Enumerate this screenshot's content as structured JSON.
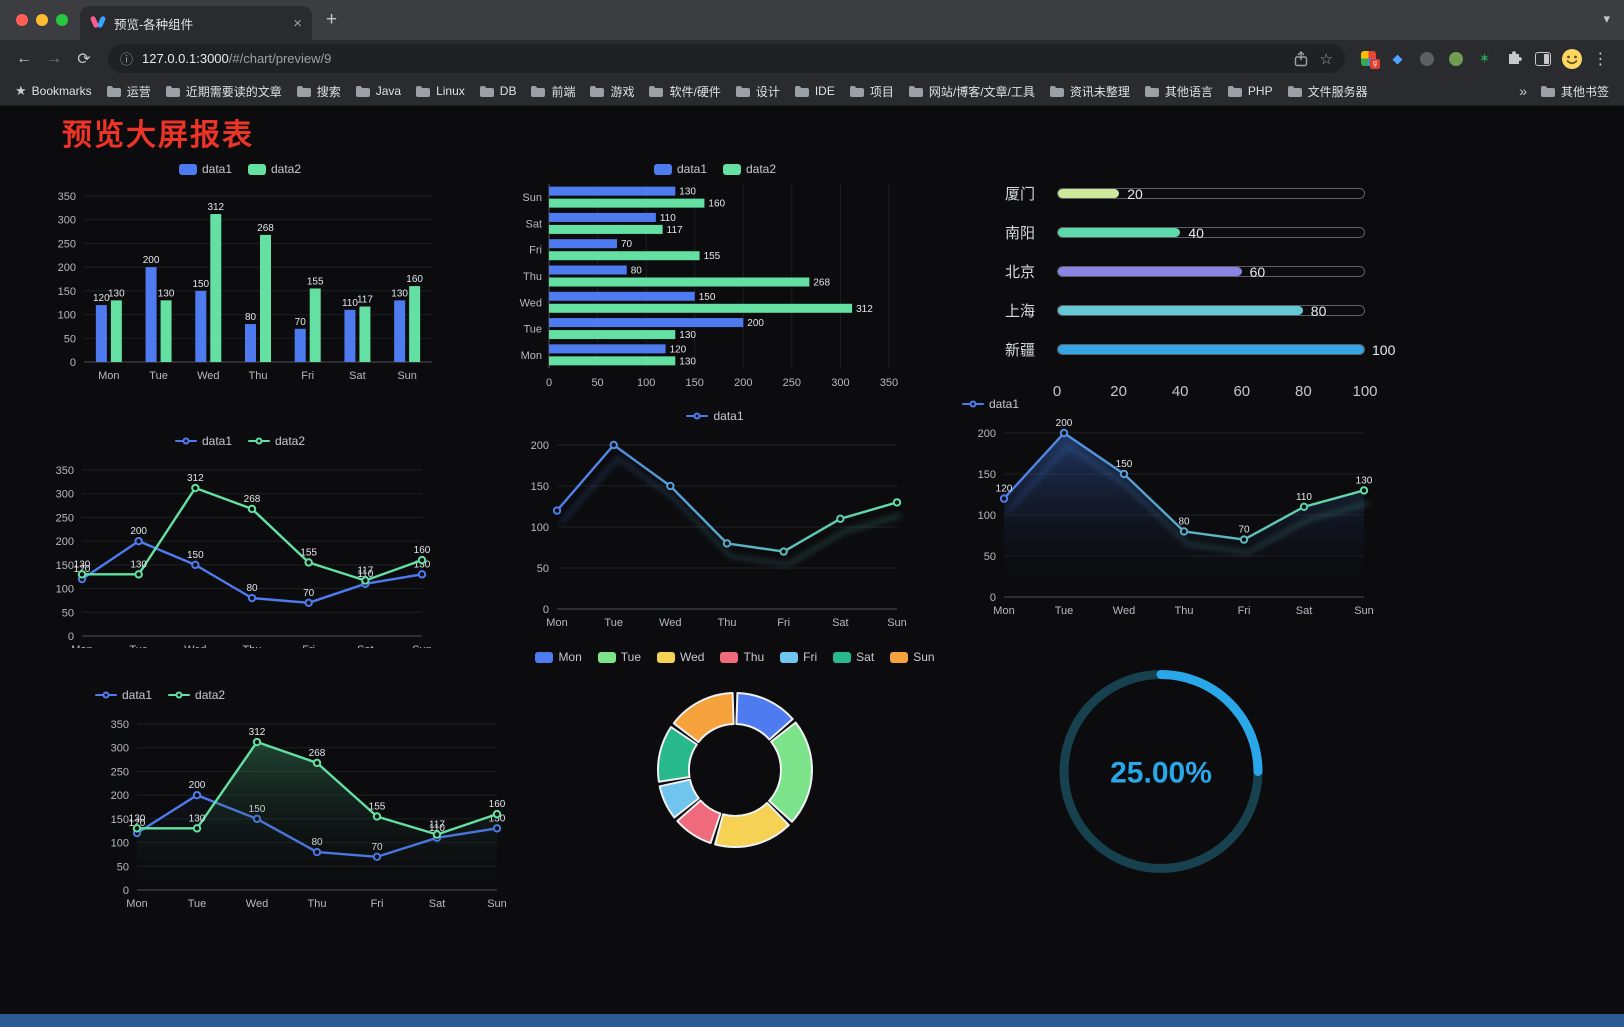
{
  "browser": {
    "tab": {
      "title": "预览-各种组件",
      "close_icon": "×",
      "new_tab_icon": "+",
      "tabsearch_icon": "▾"
    },
    "nav": {
      "back_icon": "←",
      "forward_icon": "→",
      "reload_icon": "⟳"
    },
    "omnibox": {
      "info_icon": "ⓘ",
      "url_host": "127.0.0.1:3000",
      "url_path": "/#/chart/preview/9",
      "bookmark_icon": "☆"
    },
    "toolbar_right": {
      "extension_badge": "g",
      "gem_icon": "◆",
      "star_ext_icon": "✶",
      "menu_icon": "⋮"
    },
    "bookmarks_bar": {
      "star_icon": "★",
      "label": "Bookmarks",
      "folders": [
        "运营",
        "近期需要读的文章",
        "搜索",
        "Java",
        "Linux",
        "DB",
        "前端",
        "游戏",
        "软件/硬件",
        "设计",
        "IDE",
        "项目",
        "网站/博客/文章/工具",
        "资讯未整理",
        "其他语言",
        "PHP",
        "文件服务器"
      ],
      "overflow_icon": "»",
      "other_bookmarks": "其他书签"
    }
  },
  "page": {
    "title": "预览大屏报表"
  },
  "chart_data": [
    {
      "id": "chart-bar",
      "type": "bar",
      "legend": "top",
      "labels": true,
      "ylim": [
        0,
        350
      ],
      "ytick": 50,
      "categories": [
        "Mon",
        "Tue",
        "Wed",
        "Thu",
        "Fri",
        "Sat",
        "Sun"
      ],
      "series": [
        {
          "name": "data1",
          "color": "#4e7cf0",
          "values": [
            120,
            200,
            150,
            80,
            70,
            110,
            130
          ]
        },
        {
          "name": "data2",
          "color": "#63e0a2",
          "values": [
            130,
            130,
            312,
            268,
            155,
            117,
            160
          ]
        }
      ]
    },
    {
      "id": "chart-hbar",
      "type": "hbar",
      "legend": "top",
      "labels": true,
      "xlim": [
        0,
        350
      ],
      "xtick": 50,
      "categories": [
        "Mon",
        "Tue",
        "Wed",
        "Thu",
        "Fri",
        "Sat",
        "Sun"
      ],
      "series": [
        {
          "name": "data1",
          "color": "#4e7cf0",
          "values": [
            120,
            200,
            150,
            80,
            70,
            110,
            130
          ]
        },
        {
          "name": "data2",
          "color": "#63e0a2",
          "values": [
            130,
            130,
            312,
            268,
            155,
            117,
            160
          ]
        }
      ]
    },
    {
      "id": "chart-progress",
      "type": "progress",
      "max": 100,
      "axis_ticks": [
        0,
        20,
        40,
        60,
        80,
        100
      ],
      "items": [
        {
          "label": "厦门",
          "value": 20,
          "color": "#cdea9b"
        },
        {
          "label": "南阳",
          "value": 40,
          "color": "#5ed8ad"
        },
        {
          "label": "北京",
          "value": 60,
          "color": "#8a84e2"
        },
        {
          "label": "上海",
          "value": 80,
          "color": "#66c7d7"
        },
        {
          "label": "新疆",
          "value": 100,
          "color": "#35a5e6"
        }
      ]
    },
    {
      "id": "chart-line2",
      "type": "line",
      "legend": "top",
      "labels": true,
      "ylim": [
        0,
        350
      ],
      "ytick": 50,
      "categories": [
        "Mon",
        "Tue",
        "Wed",
        "Thu",
        "Fri",
        "Sat",
        "Sun"
      ],
      "series": [
        {
          "name": "data1",
          "color": "#4e7cf0",
          "values": [
            120,
            200,
            150,
            80,
            70,
            110,
            130
          ]
        },
        {
          "name": "data2",
          "color": "#63e0a2",
          "values": [
            130,
            130,
            312,
            268,
            155,
            117,
            160
          ]
        }
      ]
    },
    {
      "id": "chart-line-gradient",
      "type": "line",
      "legend": "top",
      "labels": false,
      "shadow": true,
      "ylim": [
        0,
        200
      ],
      "ytick": 50,
      "categories": [
        "Mon",
        "Tue",
        "Wed",
        "Thu",
        "Fri",
        "Sat",
        "Sun"
      ],
      "series": [
        {
          "name": "data1",
          "color_gradient": [
            "#4e7cf0",
            "#63e0a2"
          ],
          "values": [
            120,
            200,
            150,
            80,
            70,
            110,
            130
          ]
        }
      ]
    },
    {
      "id": "chart-area1",
      "type": "line",
      "legend": "top",
      "labels": true,
      "shadow": true,
      "ylim": [
        0,
        200
      ],
      "ytick": 50,
      "categories": [
        "Mon",
        "Tue",
        "Wed",
        "Thu",
        "Fri",
        "Sat",
        "Sun"
      ],
      "series": [
        {
          "name": "data1",
          "color_gradient": [
            "#4e7cf0",
            "#63e0a2"
          ],
          "area": "rgba(56,100,190,0.5)",
          "values": [
            120,
            200,
            150,
            80,
            70,
            110,
            130
          ]
        }
      ]
    },
    {
      "id": "chart-line-area2",
      "type": "line",
      "legend": "top",
      "labels": true,
      "ylim": [
        0,
        350
      ],
      "ytick": 50,
      "categories": [
        "Mon",
        "Tue",
        "Wed",
        "Thu",
        "Fri",
        "Sat",
        "Sun"
      ],
      "series": [
        {
          "name": "data1",
          "color": "#4e7cf0",
          "area": "rgba(78,124,240,0.16)",
          "values": [
            120,
            200,
            150,
            80,
            70,
            110,
            130
          ]
        },
        {
          "name": "data2",
          "color": "#63e0a2",
          "area": "rgba(80,200,140,0.38)",
          "values": [
            130,
            130,
            312,
            268,
            155,
            117,
            160
          ]
        }
      ]
    },
    {
      "id": "chart-donut",
      "type": "donut",
      "legend": "top",
      "slices": [
        {
          "label": "Mon",
          "value": 120,
          "color": "#4e7cf0"
        },
        {
          "label": "Tue",
          "value": 200,
          "color": "#7de38a"
        },
        {
          "label": "Wed",
          "value": 150,
          "color": "#f6d254"
        },
        {
          "label": "Thu",
          "value": 80,
          "color": "#ef6a7d"
        },
        {
          "label": "Fri",
          "value": 70,
          "color": "#6fc5ee"
        },
        {
          "label": "Sat",
          "value": 110,
          "color": "#27b98c"
        },
        {
          "label": "Sun",
          "value": 130,
          "color": "#f5a23d"
        }
      ]
    },
    {
      "id": "chart-gauge",
      "type": "gauge",
      "value": 25,
      "label": "25.00%",
      "color": "#2aa7e8",
      "track_color": "#17414f"
    }
  ]
}
